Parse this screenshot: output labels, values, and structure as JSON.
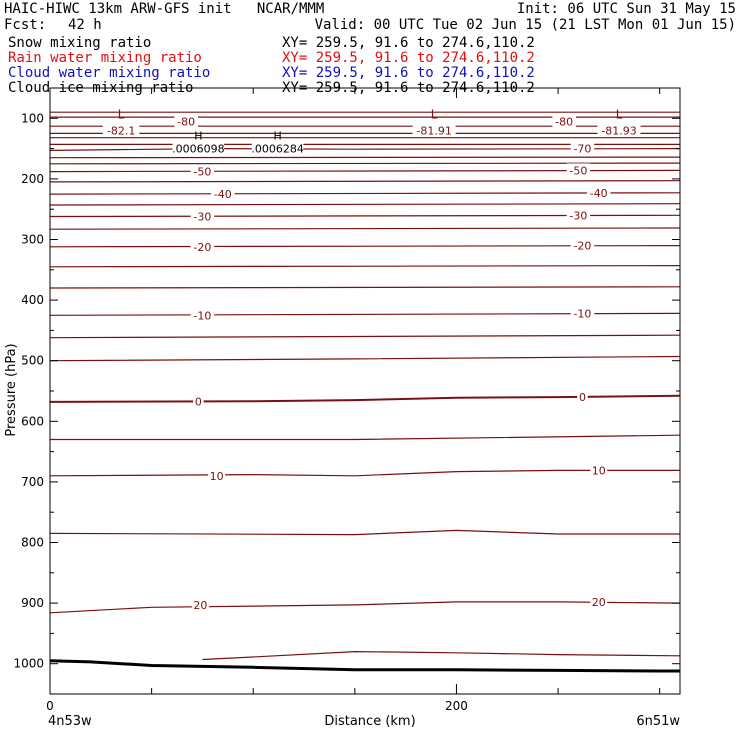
{
  "header": {
    "title": "HAIC-HIWC 13km ARW-GFS init   NCAR/MMM",
    "init": "Init: 06 UTC Sun 31 May 15",
    "fcst_label": "Fcst:",
    "fcst_value": "42 h",
    "valid": "Valid: 00 UTC Tue 02 Jun 15 (21 LST Mon 01 Jun 15)",
    "fields": [
      {
        "name": "Snow mixing ratio",
        "xy": "XY= 259.5, 91.6 to 274.6,110.2",
        "color": "#000000"
      },
      {
        "name": "Rain water mixing ratio",
        "xy": "XY= 259.5, 91.6 to 274.6,110.2",
        "color": "#e01010"
      },
      {
        "name": "Cloud water mixing ratio",
        "xy": "XY= 259.5, 91.6 to 274.6,110.2",
        "color": "#1010c0"
      },
      {
        "name": "Cloud ice mixing ratio",
        "xy": "XY= 259.5, 91.6 to 274.6,110.2",
        "color": "#000000"
      }
    ]
  },
  "chart_data": {
    "type": "line",
    "xlabel": "Distance (km)",
    "ylabel": "Pressure (hPa)",
    "xlim": [
      0,
      310
    ],
    "ylim": [
      1050,
      50
    ],
    "x_ticks": [
      0,
      200
    ],
    "y_ticks": [
      100,
      200,
      300,
      400,
      500,
      600,
      700,
      800,
      900,
      1000
    ],
    "x_end_labels": {
      "left": "4n53w",
      "right": "6n51w"
    },
    "contour_color": "#7a1010",
    "terrain": {
      "x": [
        0,
        20,
        50,
        100,
        150,
        200,
        250,
        300,
        310
      ],
      "p": [
        995,
        997,
        1003,
        1006,
        1010,
        1010,
        1011,
        1012,
        1012
      ]
    },
    "isotherms": [
      {
        "label": "-50",
        "x": [
          0,
          310
        ],
        "p": [
          188,
          186
        ],
        "label_at": [
          [
            75,
            188
          ],
          [
            260,
            186
          ]
        ]
      },
      {
        "label": "-40",
        "x": [
          0,
          310
        ],
        "p": [
          225,
          223
        ],
        "label_at": [
          [
            85,
            225
          ],
          [
            270,
            223
          ]
        ]
      },
      {
        "label": "-30",
        "x": [
          0,
          310
        ],
        "p": [
          262,
          260
        ],
        "label_at": [
          [
            75,
            262
          ],
          [
            260,
            260
          ]
        ]
      },
      {
        "label": "-20",
        "x": [
          0,
          310
        ],
        "p": [
          312,
          310
        ],
        "label_at": [
          [
            75,
            312
          ],
          [
            262,
            310
          ]
        ]
      },
      {
        "label": "-10",
        "x": [
          0,
          310
        ],
        "p": [
          425,
          422
        ],
        "label_at": [
          [
            75,
            425
          ],
          [
            262,
            422
          ]
        ]
      },
      {
        "label": "0",
        "x": [
          0,
          100,
          150,
          200,
          250,
          310
        ],
        "p": [
          568,
          567,
          565,
          561,
          560,
          558
        ],
        "label_at": [
          [
            73,
            567
          ],
          [
            262,
            560
          ]
        ]
      },
      {
        "label": "10",
        "x": [
          0,
          100,
          150,
          200,
          250,
          310
        ],
        "p": [
          690,
          688,
          690,
          683,
          681,
          681
        ],
        "label_at": [
          [
            82,
            690
          ],
          [
            270,
            681
          ]
        ]
      },
      {
        "label": "20",
        "x": [
          0,
          50,
          100,
          150,
          200,
          250,
          310
        ],
        "p": [
          916,
          907,
          905,
          903,
          898,
          898,
          900
        ],
        "label_at": [
          [
            74,
            903
          ],
          [
            270,
            898
          ]
        ]
      }
    ],
    "contours_unlabeled": [
      {
        "x": [
          0,
          310
        ],
        "p": [
          90,
          90
        ]
      },
      {
        "x": [
          0,
          310
        ],
        "p": [
          98,
          98
        ]
      },
      {
        "x": [
          0,
          310
        ],
        "p": [
          113,
          113
        ]
      },
      {
        "x": [
          0,
          310
        ],
        "p": [
          125,
          125
        ]
      },
      {
        "x": [
          0,
          310
        ],
        "p": [
          132,
          132
        ]
      },
      {
        "x": [
          0,
          310
        ],
        "p": [
          143,
          143
        ]
      },
      {
        "x": [
          0,
          80,
          150,
          310
        ],
        "p": [
          153,
          150,
          151,
          150
        ]
      },
      {
        "x": [
          0,
          310
        ],
        "p": [
          165,
          164
        ]
      },
      {
        "x": [
          0,
          310
        ],
        "p": [
          175,
          174
        ]
      },
      {
        "x": [
          0,
          310
        ],
        "p": [
          205,
          203
        ]
      },
      {
        "x": [
          0,
          310
        ],
        "p": [
          243,
          241
        ]
      },
      {
        "x": [
          0,
          310
        ],
        "p": [
          283,
          281
        ]
      },
      {
        "x": [
          0,
          310
        ],
        "p": [
          345,
          343
        ]
      },
      {
        "x": [
          0,
          310
        ],
        "p": [
          380,
          378
        ]
      },
      {
        "x": [
          0,
          150,
          310
        ],
        "p": [
          462,
          460,
          458
        ]
      },
      {
        "x": [
          0,
          150,
          310
        ],
        "p": [
          500,
          497,
          493
        ]
      },
      {
        "x": [
          0,
          150,
          310
        ],
        "p": [
          630,
          630,
          623
        ]
      },
      {
        "x": [
          0,
          150,
          200,
          250,
          310
        ],
        "p": [
          785,
          787,
          780,
          786,
          786
        ]
      },
      {
        "x": [
          75,
          100,
          150,
          200,
          250,
          310
        ],
        "p": [
          993,
          989,
          980,
          982,
          985,
          987
        ]
      }
    ],
    "highs": [
      {
        "symbol": "H",
        "value": ".0006098",
        "x": 73,
        "p": 138
      },
      {
        "symbol": "H",
        "value": ".0006284",
        "x": 112,
        "p": 138
      }
    ],
    "lows": [
      {
        "symbol": "L",
        "value": "-82.1",
        "x": 35,
        "p": 107
      },
      {
        "symbol": "L",
        "value": "-81.91",
        "x": 189,
        "p": 107
      },
      {
        "symbol": "L",
        "value": "-81.93",
        "x": 280,
        "p": 107
      }
    ],
    "extra_labels": [
      {
        "label": "-80",
        "x": 67,
        "p": 105
      },
      {
        "label": "-80",
        "x": 253,
        "p": 105
      },
      {
        "label": "-70",
        "x": 262,
        "p": 150
      }
    ]
  }
}
